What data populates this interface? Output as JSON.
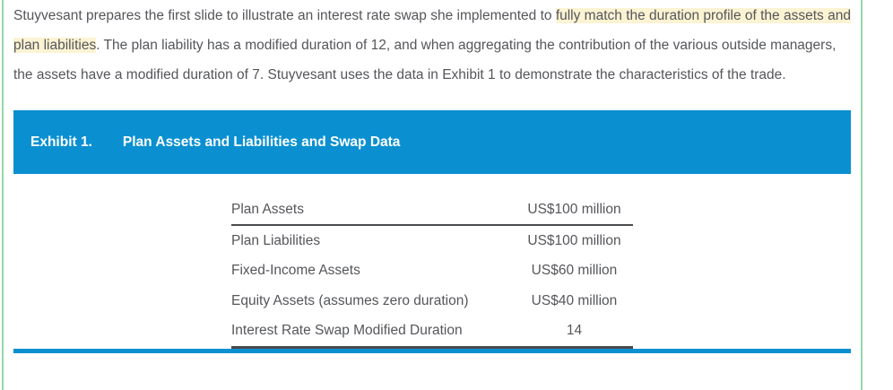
{
  "paragraph": {
    "pre": "Stuyvesant prepares the first slide to illustrate an interest rate swap she implemented to ",
    "highlight": "fully match the duration profile of the assets and plan liabilities",
    "post": ". The plan liability has a modified duration of 12, and when aggregating the contribution of the various outside managers, the assets have a modified duration of 7. Stuyvesant uses the data in Exhibit 1 to demonstrate the characteristics of the trade."
  },
  "exhibit": {
    "label": "Exhibit 1.",
    "title": "Plan Assets and Liabilities and Swap Data"
  },
  "table": {
    "rows": [
      {
        "label": "Plan Assets",
        "value": "US$100 million"
      },
      {
        "label": "Plan Liabilities",
        "value": "US$100 million"
      },
      {
        "label": "Fixed-Income Assets",
        "value": "US$60 million"
      },
      {
        "label": "Equity Assets (assumes zero duration)",
        "value": "US$40 million"
      },
      {
        "label": "Interest Rate Swap Modified Duration",
        "value": "14"
      }
    ]
  },
  "colors": {
    "accent_blue": "#0a90d1",
    "border_green": "#95d6aa",
    "text_gray": "#55565a",
    "rule_dark": "#474b4e",
    "highlight_yellow": "#fcf3d3"
  }
}
